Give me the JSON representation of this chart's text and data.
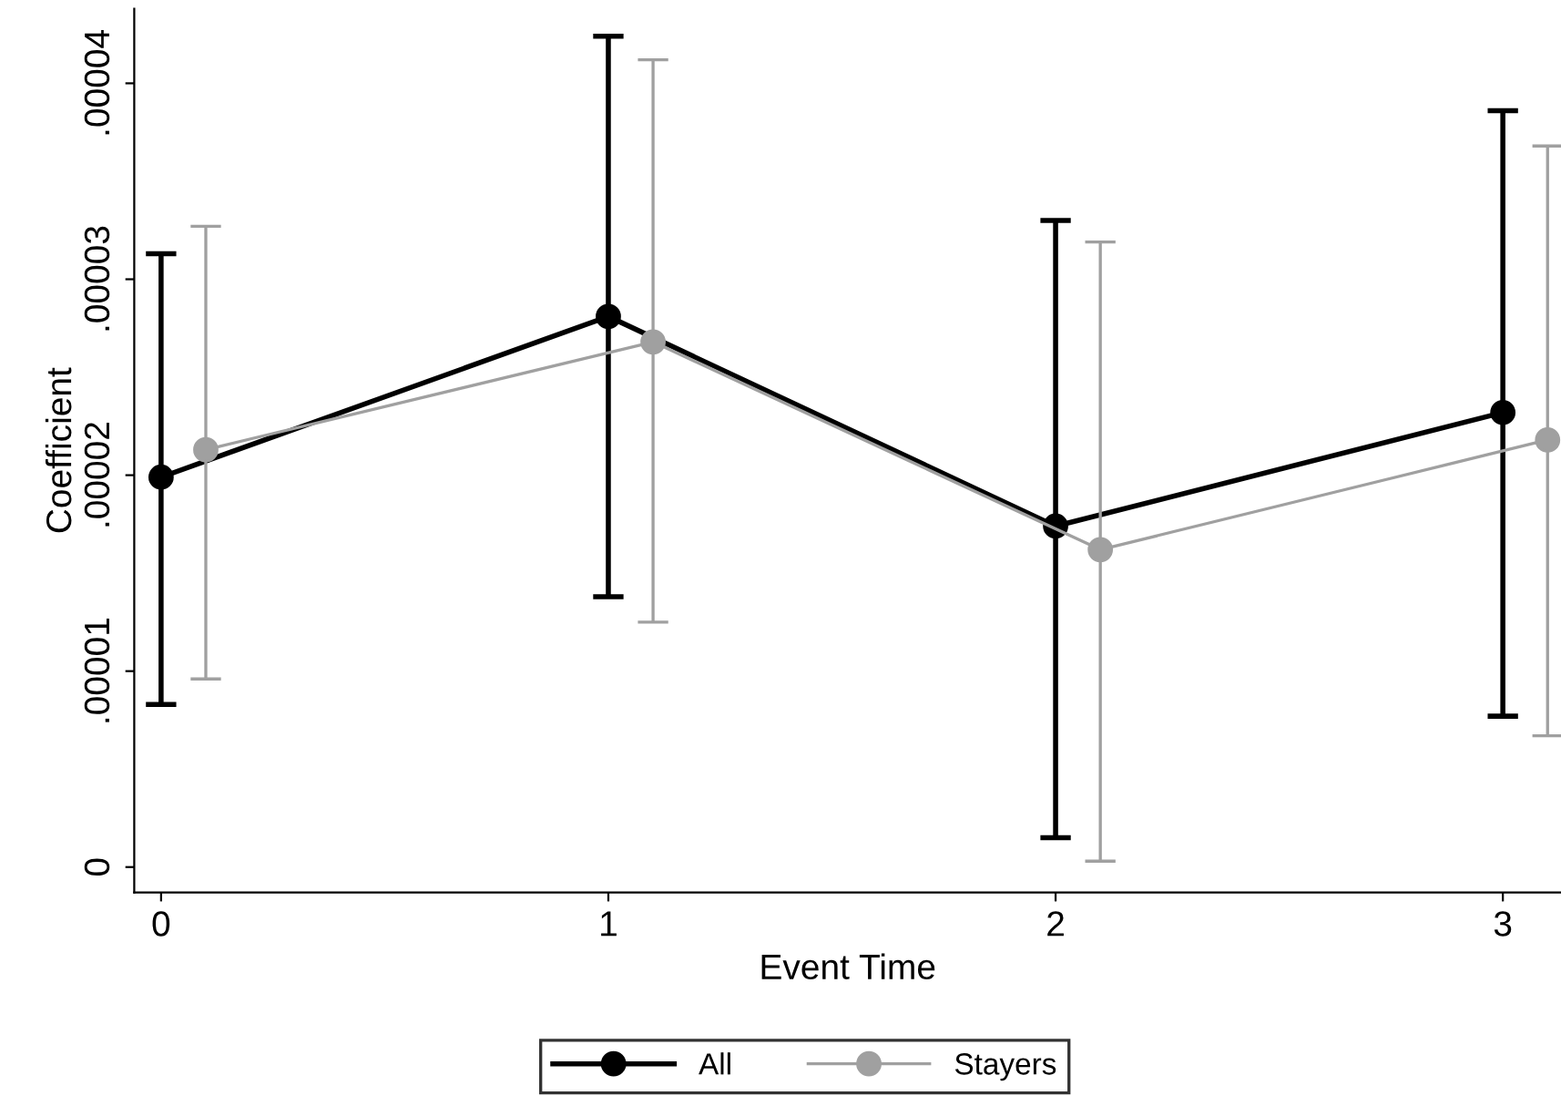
{
  "chart_data": {
    "type": "line",
    "xlabel": "Event Time",
    "ylabel": "Coefficient",
    "x": [
      0,
      1,
      2,
      3
    ],
    "series": [
      {
        "name": "All",
        "color": "#000000",
        "marker": "circle",
        "line_style": "solid",
        "values": [
          1.99e-05,
          2.81e-05,
          1.74e-05,
          2.32e-05
        ],
        "errors": [
          [
            8.3e-06,
            3.13e-05
          ],
          [
            1.38e-05,
            4.24e-05
          ],
          [
            1.5e-06,
            3.3e-05
          ],
          [
            7.7e-06,
            3.86e-05
          ]
        ]
      },
      {
        "name": "Stayers",
        "color": "#a0a0a0",
        "marker": "circle",
        "line_style": "solid",
        "x": [
          0.1,
          1.1,
          2.1,
          3.1
        ],
        "values": [
          2.13e-05,
          2.68e-05,
          1.62e-05,
          2.18e-05
        ],
        "errors": [
          [
            9.6e-06,
            3.27e-05
          ],
          [
            1.25e-05,
            4.12e-05
          ],
          [
            3e-07,
            3.19e-05
          ],
          [
            6.7e-06,
            3.68e-05
          ]
        ]
      }
    ],
    "xlim": [
      -0.06,
      3.13
    ],
    "xticks": [
      0,
      1,
      2,
      3
    ],
    "ylim": [
      -1.3e-06,
      4.38e-05
    ],
    "yticks": [
      0,
      {
        "value": 1e-05,
        "label": ".00001"
      },
      {
        "value": 2e-05,
        "label": ".00002"
      },
      {
        "value": 3e-05,
        "label": ".00003"
      },
      {
        "value": 4e-05,
        "label": ".00004"
      }
    ],
    "grid": false,
    "legend": "bottom"
  }
}
